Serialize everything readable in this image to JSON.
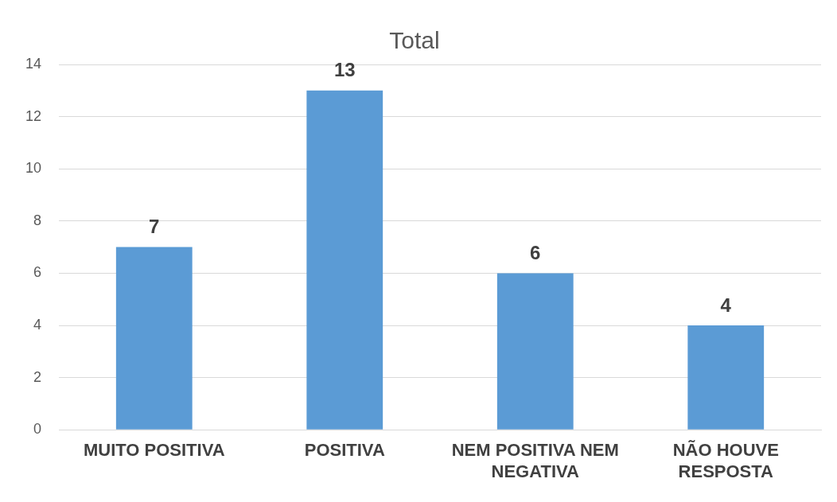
{
  "chart_data": {
    "type": "bar",
    "title": "Total",
    "categories": [
      "MUITO POSITIVA",
      "POSITIVA",
      "NEM POSITIVA NEM NEGATIVA",
      "NÃO HOUVE RESPOSTA"
    ],
    "values": [
      7,
      13,
      6,
      4
    ],
    "color": "#5b9bd5",
    "ylim": [
      0,
      14
    ],
    "yticks": [
      0,
      2,
      4,
      6,
      8,
      10,
      12,
      14
    ],
    "grid": "y",
    "legend": false,
    "data_labels": true
  }
}
